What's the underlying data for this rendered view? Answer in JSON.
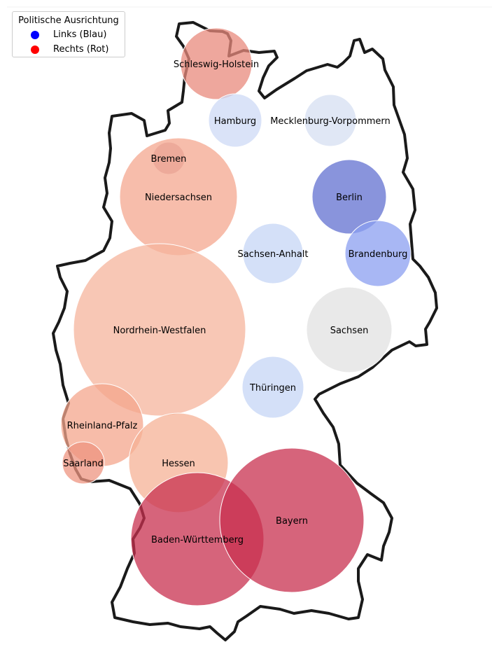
{
  "chart_data": {
    "type": "scatter",
    "title": "",
    "xlabel": "",
    "ylabel": "",
    "grid": false,
    "legend": {
      "title": "Politische Ausrichtung",
      "placement": "top-left",
      "entries": [
        {
          "label": "Links (Blau)",
          "color": "#0000ff"
        },
        {
          "label": "Rechts (Rot)",
          "color": "#ff0000"
        }
      ]
    },
    "background_shape": "germany-outline",
    "points": [
      {
        "label": "Schleswig-Holstein",
        "lean": 0.55,
        "color": "#e8897c"
      },
      {
        "label": "Hamburg",
        "lean": -0.25,
        "color": "#cdd9f5"
      },
      {
        "label": "Mecklenburg-Vorpommern",
        "lean": -0.15,
        "color": "#d6dff1"
      },
      {
        "label": "Bremen",
        "lean": 0.45,
        "color": "#c99aa6"
      },
      {
        "label": "Niedersachsen",
        "lean": 0.4,
        "color": "#f4a78f"
      },
      {
        "label": "Berlin",
        "lean": -0.9,
        "color": "#6170d0"
      },
      {
        "label": "Sachsen-Anhalt",
        "lean": -0.25,
        "color": "#c6d5f6"
      },
      {
        "label": "Brandenburg",
        "lean": -0.65,
        "color": "#8b9ff0"
      },
      {
        "label": "Nordrhein-Westfalen",
        "lean": 0.35,
        "color": "#f6b49c"
      },
      {
        "label": "Sachsen",
        "lean": 0.0,
        "color": "#e1e1e1"
      },
      {
        "label": "Thüringen",
        "lean": -0.25,
        "color": "#c6d5f6"
      },
      {
        "label": "Rheinland-Pfalz",
        "lean": 0.4,
        "color": "#f4a68c"
      },
      {
        "label": "Saarland",
        "lean": 0.5,
        "color": "#ee9480"
      },
      {
        "label": "Hessen",
        "lean": 0.35,
        "color": "#f5b196"
      },
      {
        "label": "Baden-Württemberg",
        "lean": 0.85,
        "color": "#c8304f"
      },
      {
        "label": "Bayern",
        "lean": 0.85,
        "color": "#c8304f"
      }
    ]
  }
}
